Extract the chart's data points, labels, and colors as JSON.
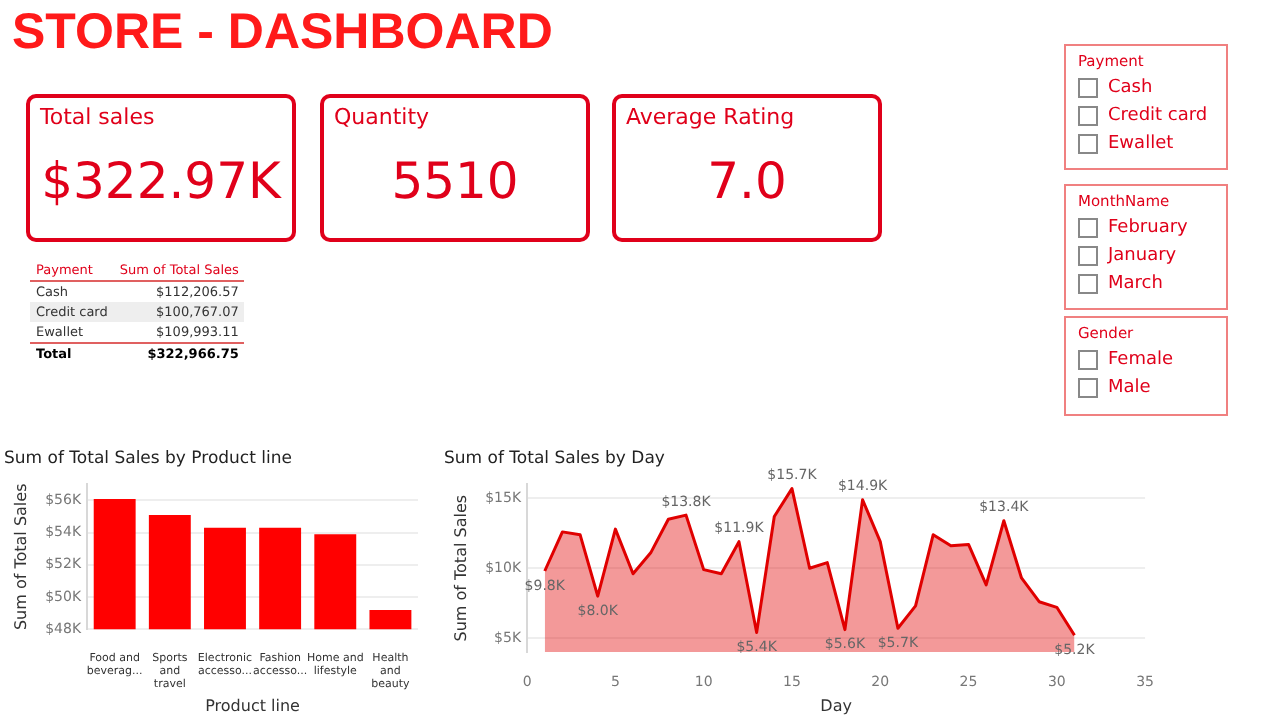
{
  "chart_data": [
    {
      "type": "other",
      "title": "STORE - DASHBOARD"
    },
    {
      "type": "other",
      "title": "Total sales",
      "annotations": [
        "$322.97K"
      ]
    },
    {
      "type": "other",
      "title": "Quantity",
      "annotations": [
        "5510"
      ]
    },
    {
      "type": "other",
      "title": "Average Rating",
      "annotations": [
        "7.0"
      ]
    },
    {
      "type": "other",
      "annotations": [
        "Payment",
        "Sum of Total Sales",
        "Cash",
        "$112,206.57",
        "Credit card",
        "$100,767.07",
        "Ewallet",
        "$109,993.11",
        "Total",
        "$322,966.75"
      ]
    },
    {
      "type": "other",
      "title": "Payment",
      "annotations": [
        "Cash",
        "Credit card",
        "Ewallet"
      ]
    },
    {
      "type": "other",
      "title": "MonthName",
      "annotations": [
        "February",
        "January",
        "March"
      ]
    },
    {
      "type": "other",
      "title": "Gender",
      "annotations": [
        "Female",
        "Male"
      ]
    },
    {
      "type": "bar",
      "title": "Sum of Total Sales by Product line",
      "xlabel": "Product line",
      "ylabel": "Sum of Total Sales",
      "categories": [
        "Food and beverag...",
        "Sports and travel",
        "Electronic accesso...",
        "Fashion accesso...",
        "Home and lifestyle",
        "Health and beauty"
      ],
      "values": [
        56100,
        55100,
        54300,
        54300,
        53900,
        49200
      ],
      "color": "#ff0000",
      "ylim": [
        48000,
        57000
      ],
      "yticks": [
        {
          "value": 48000,
          "label": "$48K"
        },
        {
          "value": 50000,
          "label": "$50K"
        },
        {
          "value": 52000,
          "label": "$52K"
        },
        {
          "value": 54000,
          "label": "$54K"
        },
        {
          "value": 56000,
          "label": "$56K"
        }
      ],
      "grid": "y"
    },
    {
      "type": "area",
      "title": "Sum of Total Sales by Day",
      "xlabel": "Day",
      "ylabel": "Sum of Total Sales",
      "x": [
        1,
        2,
        3,
        4,
        5,
        6,
        7,
        8,
        9,
        10,
        11,
        12,
        13,
        14,
        15,
        16,
        17,
        18,
        19,
        20,
        21,
        22,
        23,
        24,
        25,
        26,
        27,
        28,
        29,
        30,
        31
      ],
      "series": [
        {
          "color": "#e00000",
          "values": [
            9800,
            12600,
            12400,
            8000,
            12800,
            9600,
            11100,
            13500,
            13800,
            9900,
            9600,
            11900,
            5400,
            13700,
            15700,
            10000,
            10400,
            5600,
            14900,
            11900,
            5700,
            7300,
            12400,
            11600,
            11700,
            8800,
            13400,
            9300,
            7600,
            7200,
            5200
          ],
          "value_labels": [
            "$9.8K",
            null,
            null,
            "$8.0K",
            null,
            null,
            null,
            null,
            "$13.8K",
            null,
            null,
            "$11.9K",
            "$5.4K",
            null,
            "$15.7K",
            null,
            null,
            "$5.6K",
            "$14.9K",
            null,
            "$5.7K",
            null,
            null,
            null,
            null,
            null,
            "$13.4K",
            null,
            null,
            null,
            "$5.2K"
          ]
        }
      ],
      "xlim": [
        0,
        35
      ],
      "xticks": [
        0,
        5,
        10,
        15,
        20,
        25,
        30,
        35
      ],
      "ylim": [
        4000,
        16000
      ],
      "yticks": [
        {
          "value": 5000,
          "label": "$5K"
        },
        {
          "value": 10000,
          "label": "$10K"
        },
        {
          "value": 15000,
          "label": "$15K"
        }
      ],
      "grid": "y"
    }
  ]
}
